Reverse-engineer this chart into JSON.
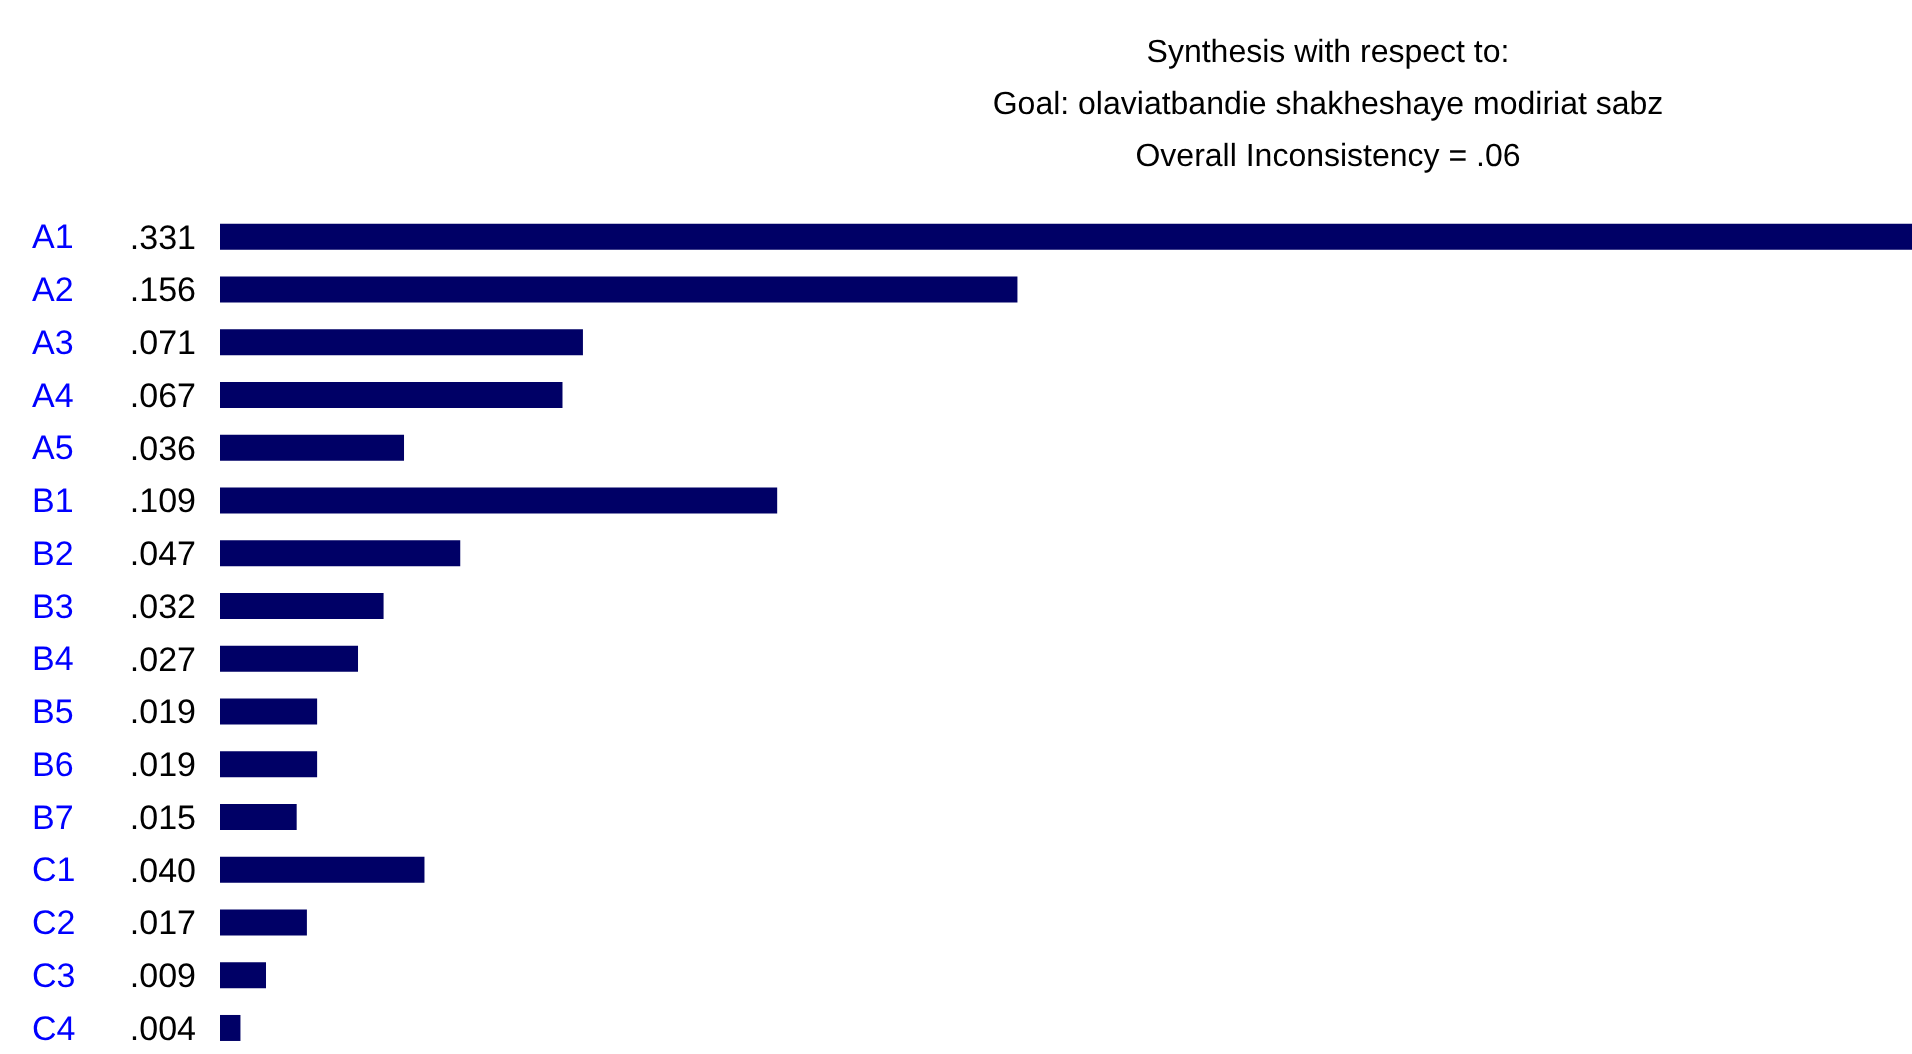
{
  "chart_data": {
    "type": "bar",
    "orientation": "horizontal",
    "title": "Synthesis with respect to:",
    "subtitle": "Goal: olaviatbandie shakheshaye modiriat sabz",
    "annotations": [
      "Overall Inconsistency = .06"
    ],
    "categories": [
      "A1",
      "A2",
      "A3",
      "A4",
      "A5",
      "B1",
      "B2",
      "B3",
      "B4",
      "B5",
      "B6",
      "B7",
      "C1",
      "C2",
      "C3",
      "C4"
    ],
    "values": [
      0.331,
      0.156,
      0.071,
      0.067,
      0.036,
      0.109,
      0.047,
      0.032,
      0.027,
      0.019,
      0.019,
      0.015,
      0.04,
      0.017,
      0.009,
      0.004
    ],
    "value_labels": [
      ".331",
      ".156",
      ".071",
      ".067",
      ".036",
      ".109",
      ".047",
      ".032",
      ".027",
      ".019",
      ".019",
      ".015",
      ".040",
      ".017",
      ".009",
      ".004"
    ],
    "color": "#000066"
  }
}
